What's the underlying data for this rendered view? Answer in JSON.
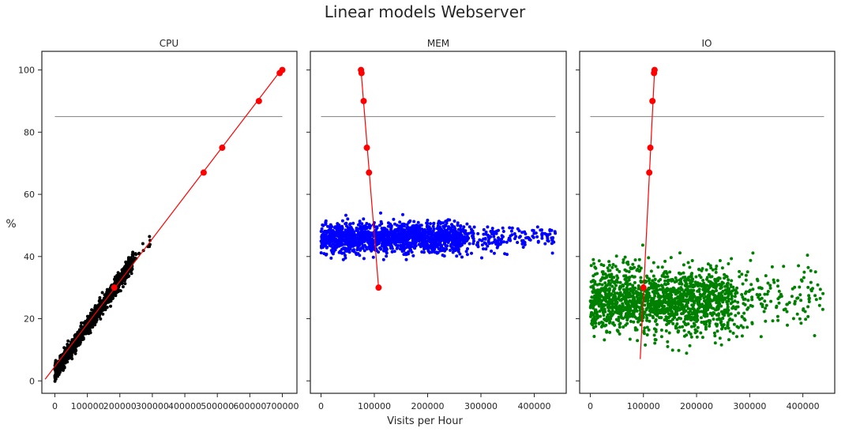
{
  "figure": {
    "title": "Linear models Webserver",
    "shared_xlabel": "Visits per Hour",
    "shared_ylabel": "%"
  },
  "colors": {
    "cpu_points": "#000000",
    "mem_points": "#0000ff",
    "io_points": "#008000",
    "fit_line": "#ff0000",
    "threshold_line": "#808080"
  },
  "chart_data": [
    {
      "type": "scatter",
      "title": "CPU",
      "xlabel": "",
      "ylabel": "%",
      "xlim": [
        -40000,
        745000
      ],
      "ylim": [
        -4,
        106
      ],
      "xticks": [
        0,
        100000,
        200000,
        300000,
        400000,
        500000,
        600000,
        700000
      ],
      "xtick_labels": [
        "0",
        "100000",
        "200000",
        "300000",
        "400000",
        "500000",
        "600000",
        "700000"
      ],
      "yticks": [
        0,
        20,
        40,
        60,
        80,
        100
      ],
      "ytick_labels": [
        "0",
        "20",
        "40",
        "60",
        "80",
        "100"
      ],
      "grid": false,
      "scatter_summary": {
        "x_range": [
          0,
          320000
        ],
        "y_trend": "y ≈ 3 + 0.000147 * x",
        "y_noise_sd": 1.3
      },
      "threshold": {
        "y": 85,
        "x_range": [
          0,
          700000
        ]
      },
      "fit_line": {
        "x": [
          -30000,
          700000
        ],
        "y": [
          0.5,
          100.5
        ]
      },
      "fit_points": [
        {
          "x": 183000,
          "y": 30
        },
        {
          "x": 458000,
          "y": 67
        },
        {
          "x": 515000,
          "y": 75
        },
        {
          "x": 628000,
          "y": 90
        },
        {
          "x": 692000,
          "y": 99
        },
        {
          "x": 700000,
          "y": 100
        }
      ]
    },
    {
      "type": "scatter",
      "title": "MEM",
      "xlabel": "Visits per Hour",
      "ylabel": "",
      "xlim": [
        -20000,
        460000
      ],
      "ylim": [
        -4,
        106
      ],
      "xticks": [
        0,
        100000,
        200000,
        300000,
        400000
      ],
      "xtick_labels": [
        "0",
        "100000",
        "200000",
        "300000",
        "400000"
      ],
      "yticks": [
        0,
        20,
        40,
        60,
        80,
        100
      ],
      "grid": false,
      "scatter_summary": {
        "x_range": [
          0,
          440000
        ],
        "y_mean": 46,
        "y_range": [
          39,
          54
        ]
      },
      "threshold": {
        "y": 85,
        "x_range": [
          0,
          440000
        ]
      },
      "fit_line": {
        "x": [
          108000,
          75000
        ],
        "y": [
          30,
          100
        ]
      },
      "fit_points": [
        {
          "x": 108000,
          "y": 30
        },
        {
          "x": 90000,
          "y": 67
        },
        {
          "x": 86000,
          "y": 75
        },
        {
          "x": 80000,
          "y": 90
        },
        {
          "x": 76000,
          "y": 99
        },
        {
          "x": 75000,
          "y": 100
        }
      ]
    },
    {
      "type": "scatter",
      "title": "IO",
      "xlabel": "",
      "ylabel": "",
      "xlim": [
        -20000,
        460000
      ],
      "ylim": [
        -4,
        106
      ],
      "xticks": [
        0,
        100000,
        200000,
        300000,
        400000
      ],
      "xtick_labels": [
        "0",
        "100000",
        "200000",
        "300000",
        "400000"
      ],
      "yticks": [
        0,
        20,
        40,
        60,
        80,
        100
      ],
      "grid": false,
      "scatter_summary": {
        "x_range": [
          0,
          440000
        ],
        "y_mean": 26,
        "y_range": [
          7,
          45
        ]
      },
      "threshold": {
        "y": 85,
        "x_range": [
          0,
          440000
        ]
      },
      "fit_line": {
        "x": [
          94000,
          121000
        ],
        "y": [
          7,
          100
        ]
      },
      "fit_points": [
        {
          "x": 100000,
          "y": 30
        },
        {
          "x": 111000,
          "y": 67
        },
        {
          "x": 113000,
          "y": 75
        },
        {
          "x": 117000,
          "y": 90
        },
        {
          "x": 120000,
          "y": 99
        },
        {
          "x": 121000,
          "y": 100
        }
      ]
    }
  ]
}
